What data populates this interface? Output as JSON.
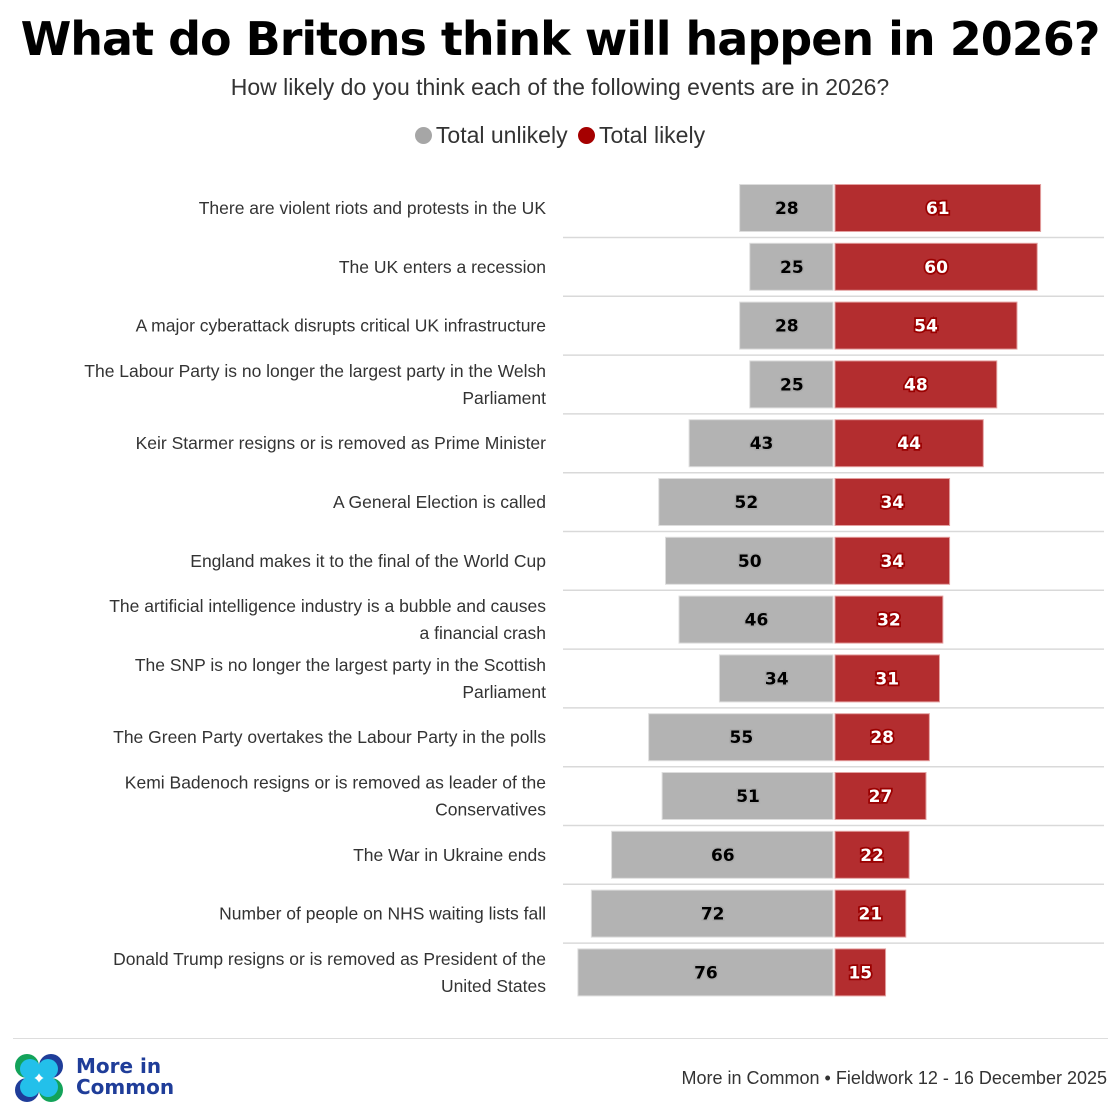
{
  "chart_data": {
    "type": "bar",
    "orientation": "horizontal-diverging",
    "title": "What do Britons think will happen in 2026?",
    "subtitle": "How likely do you think each of the following events are in 2026?",
    "legend_position": "top",
    "grid": false,
    "categories": [
      "There are violent riots and protests in the UK",
      "The UK enters a recession",
      "A major cyberattack disrupts critical UK infrastructure",
      "The Labour Party is no longer the largest party in the Welsh Parliament",
      "Keir Starmer resigns or is removed as Prime Minister",
      "A General Election is called",
      "England makes it to the final of the World Cup",
      "The artificial intelligence industry is a bubble and causes a financial crash",
      "The SNP is no longer the largest party in the Scottish Parliament",
      "The Green Party overtakes the Labour Party in the polls",
      "Kemi Badenoch resigns or is removed as leader of the Conservatives",
      "The War in Ukraine ends",
      "Number of people on NHS waiting lists fall",
      "Donald Trump resigns or is removed as President of the United States"
    ],
    "series": [
      {
        "name": "Total unlikely",
        "color": "#b3b3b3",
        "values": [
          28,
          25,
          28,
          25,
          43,
          52,
          50,
          46,
          34,
          55,
          51,
          66,
          72,
          76
        ]
      },
      {
        "name": "Total likely",
        "color": "#b32d2f",
        "values": [
          61,
          60,
          54,
          48,
          44,
          34,
          34,
          32,
          31,
          28,
          27,
          22,
          21,
          15
        ]
      }
    ]
  },
  "legend_colors": {
    "unlikely": "#a6a6a6",
    "likely": "#a50000"
  },
  "footer": {
    "logo_text_line1": "More in",
    "logo_text_line2": "Common",
    "source": "More in Common • Fieldwork 12 - 16 December 2025"
  }
}
